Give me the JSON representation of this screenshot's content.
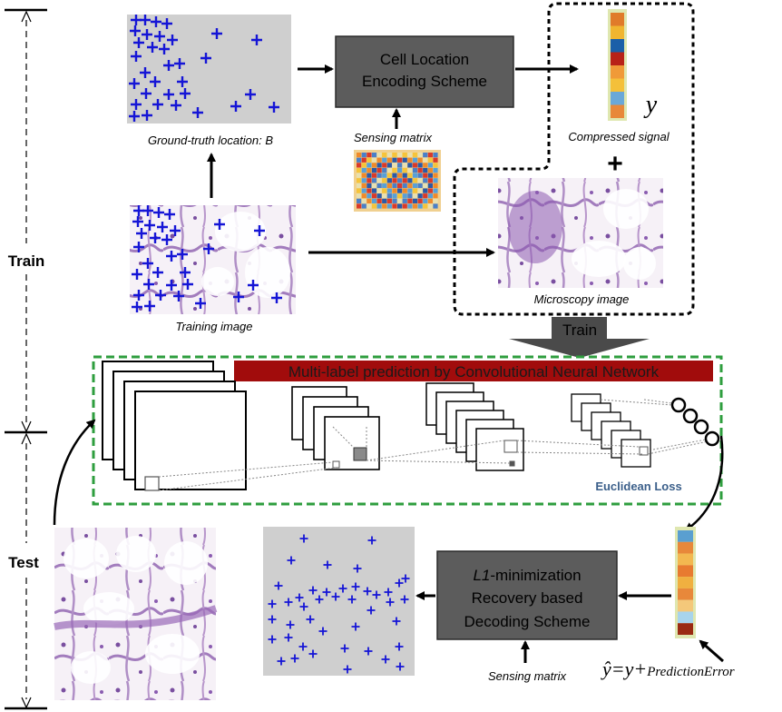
{
  "phases": {
    "train": "Train",
    "test": "Test"
  },
  "nodes": {
    "ground_truth_caption": "Ground-truth location: B",
    "encoding_box": [
      "Cell Location",
      "Encoding Scheme"
    ],
    "sensing_matrix_top": "Sensing matrix",
    "compressed_signal": "Compressed signal",
    "y_symbol": "y",
    "plus": "+",
    "training_image_caption": "Training image",
    "microscopy_caption": "Microscopy image",
    "train_arrow_label": "Train",
    "cnn_title": "Multi-label prediction by Convolutional Neural Network",
    "loss_label": "Euclidean Loss",
    "decoding_box_line1_em": "L1",
    "decoding_box_line1_rest": "-minimization",
    "decoding_box_lines": [
      "Recovery based",
      "Decoding Scheme"
    ],
    "sensing_matrix_bottom": "Sensing matrix",
    "formula_lhs": "ŷ=y+",
    "formula_sub": "PredictionError"
  },
  "colors": {
    "plus_marker": "#1515d6",
    "process_box": "#5a5a5a",
    "cnn_border": "#2e9e3e",
    "cnn_title_bg": "#a10c0c",
    "loss_text": "#3b5f8a",
    "train_arrow": "#484848",
    "tissue_bg": "#f3eef4",
    "tissue_stain": "#9a6ab8"
  },
  "signal_top": [
    "#e07b2a",
    "#f0b530",
    "#1a5fa8",
    "#b82218",
    "#f09a38",
    "#f4c03a",
    "#6aa8d8",
    "#e8883a"
  ],
  "signal_bottom": [
    "#5a9fd0",
    "#e8883a",
    "#f3b850",
    "#e87b30",
    "#f0b040",
    "#e8883a",
    "#f4c87a",
    "#a8d4ec",
    "#9a2a12"
  ]
}
